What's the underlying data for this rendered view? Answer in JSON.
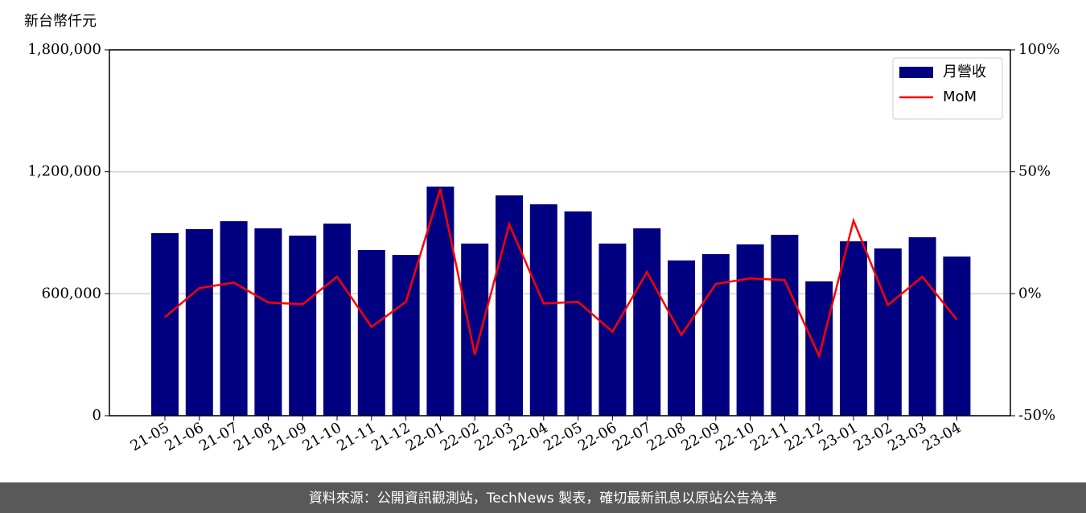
{
  "chart_data": {
    "type": "bar",
    "y_label": "新台幣仟元",
    "categories": [
      "21-05",
      "21-06",
      "21-07",
      "21-08",
      "21-09",
      "21-10",
      "21-11",
      "21-12",
      "22-01",
      "22-02",
      "22-03",
      "22-04",
      "22-05",
      "22-06",
      "22-07",
      "22-08",
      "22-09",
      "22-10",
      "22-11",
      "22-12",
      "23-01",
      "23-02",
      "23-03",
      "23-04"
    ],
    "series": [
      {
        "name": "月營收",
        "type": "bar",
        "color": "#000080",
        "values": [
          898000,
          918000,
          957000,
          922000,
          886000,
          945000,
          815000,
          791000,
          1127000,
          847000,
          1084000,
          1040000,
          1005000,
          847000,
          922000,
          764000,
          795000,
          843000,
          890000,
          661000,
          858000,
          823000,
          878000,
          783000
        ]
      },
      {
        "name": "MoM",
        "type": "line",
        "axis": "y2",
        "color": "#ff0000",
        "values": [
          -9.6,
          2.3,
          4.6,
          -3.6,
          -4.3,
          7.0,
          -13.6,
          -3.3,
          43,
          -25,
          28.5,
          -4,
          -3.3,
          -15.6,
          8.9,
          -16.9,
          4,
          6.3,
          5.6,
          -25.5,
          30,
          -4.6,
          7,
          -10.6
        ]
      }
    ],
    "ylim": [
      0,
      1800000
    ],
    "yticks": [
      0,
      {
        "value": 600000,
        "label": "600,000"
      },
      {
        "value": 1200000,
        "label": "1,200,000"
      },
      {
        "value": 1800000,
        "label": "1,800,000"
      }
    ],
    "y2lim": [
      -50,
      100
    ],
    "y2ticks": [
      {
        "value": -50,
        "label": "-50%"
      },
      {
        "value": 0,
        "label": "0%"
      },
      {
        "value": 50,
        "label": "50%"
      },
      {
        "value": 100,
        "label": "100%"
      }
    ],
    "grid": true,
    "legend": "upper right"
  },
  "footer": "資料來源：公開資訊觀測站，TechNews 製表，確切最新訊息以原站公告為準"
}
